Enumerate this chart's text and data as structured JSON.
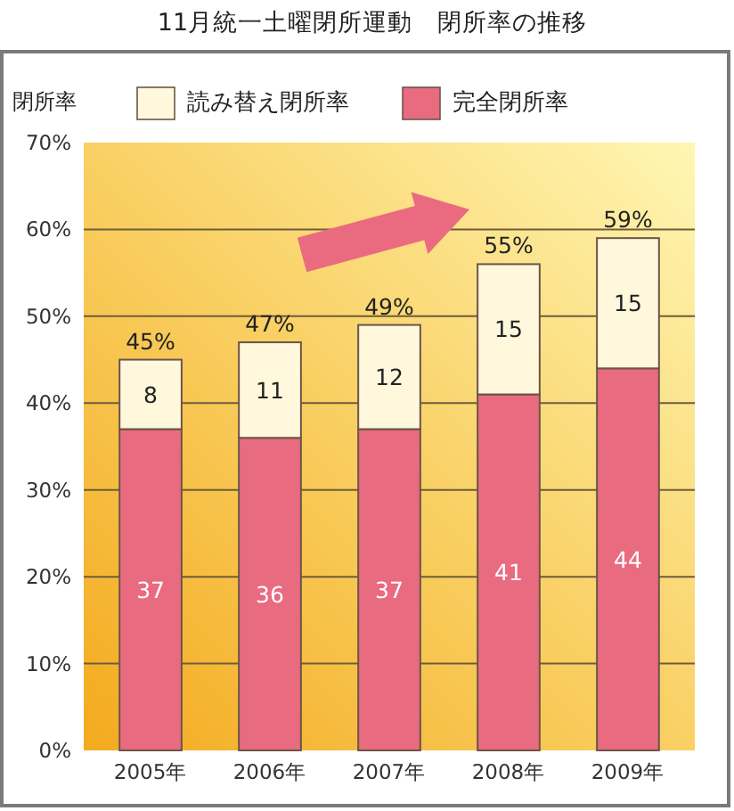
{
  "chart_data": {
    "type": "bar",
    "title": "11月統一土曜閉所運動　閉所率の推移",
    "ylabel": "閉所率",
    "categories": [
      "2005年",
      "2006年",
      "2007年",
      "2008年",
      "2009年"
    ],
    "series": [
      {
        "name": "完全閉所率",
        "color": "#e96b80",
        "values": [
          37,
          36,
          37,
          41,
          44
        ]
      },
      {
        "name": "読み替え閉所率",
        "color": "#fff8dc",
        "values": [
          8,
          11,
          12,
          15,
          15
        ]
      }
    ],
    "stacked": true,
    "ylim": [
      0,
      70
    ],
    "yticks": [
      {
        "value": 0,
        "label": "0%"
      },
      {
        "value": 10,
        "label": "10%"
      },
      {
        "value": 20,
        "label": "20%"
      },
      {
        "value": 30,
        "label": "30%"
      },
      {
        "value": 40,
        "label": "40%"
      },
      {
        "value": 50,
        "label": "50%"
      },
      {
        "value": 60,
        "label": "60%"
      },
      {
        "value": 70,
        "label": "70%"
      }
    ],
    "grid": "y",
    "legend": "top",
    "data_labels": true,
    "totals": [
      "45%",
      "47%",
      "49%",
      "55%",
      "59%"
    ]
  }
}
